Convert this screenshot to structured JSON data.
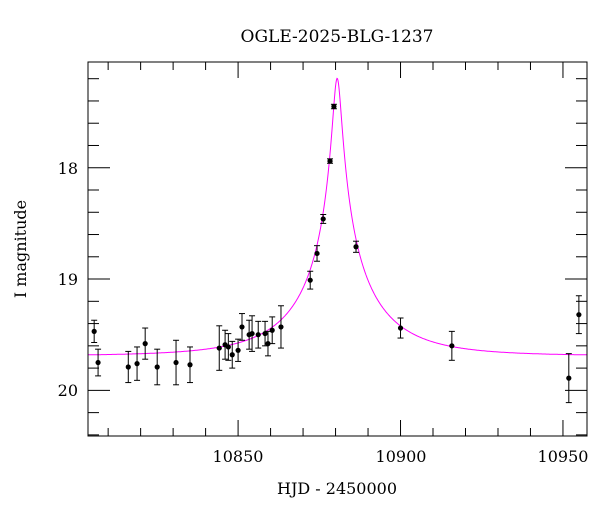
{
  "chart_data": {
    "type": "scatter",
    "title": "OGLE-2025-BLG-1237",
    "xlabel": "HJD - 2450000",
    "ylabel": "I magnitude",
    "xlim": [
      10803.8,
      10957.4
    ],
    "ylim": [
      20.41,
      17.05
    ],
    "y_inverted": true,
    "x_ticks": [
      10850,
      10900,
      10950
    ],
    "x_tick_labels": [
      "10850",
      "10900",
      "10950"
    ],
    "x_minor_step": 10,
    "y_ticks": [
      18,
      19,
      20
    ],
    "y_tick_labels": [
      "18",
      "19",
      "20"
    ],
    "y_minor_step": 0.2,
    "grid": false,
    "colors": {
      "points": "#000000",
      "model": "#ff00ff"
    },
    "series": [
      {
        "kind": "points-with-errorbars",
        "x": [
          10805.7,
          10806.9,
          10816.2,
          10818.9,
          10821.4,
          10825.1,
          10830.9,
          10835.2,
          10844.2,
          10846.0,
          10847.0,
          10848.2,
          10850.0,
          10851.2,
          10853.4,
          10854.3,
          10856.2,
          10858.3,
          10859.2,
          10860.5,
          10863.2,
          10872.2,
          10874.3,
          10876.2,
          10878.3,
          10879.5,
          10886.3,
          10900.0,
          10915.8,
          10951.8,
          10954.9
        ],
        "y": [
          19.47,
          19.75,
          19.79,
          19.76,
          19.58,
          19.79,
          19.75,
          19.77,
          19.62,
          19.59,
          19.61,
          19.68,
          19.64,
          19.43,
          19.5,
          19.49,
          19.5,
          19.49,
          19.58,
          19.46,
          19.43,
          19.01,
          18.77,
          18.46,
          17.94,
          17.45,
          18.71,
          19.44,
          19.6,
          19.89,
          19.32
        ],
        "yerr": [
          0.1,
          0.12,
          0.14,
          0.15,
          0.14,
          0.16,
          0.2,
          0.16,
          0.2,
          0.13,
          0.12,
          0.12,
          0.1,
          0.12,
          0.13,
          0.16,
          0.12,
          0.11,
          0.11,
          0.12,
          0.19,
          0.08,
          0.07,
          0.04,
          0.02,
          0.02,
          0.05,
          0.09,
          0.13,
          0.22,
          0.17
        ]
      },
      {
        "kind": "model-curve",
        "model": "point-lens",
        "t0": 10880.5,
        "u0": 0.05,
        "tE": 26,
        "baseline_mag": 19.69,
        "source_fraction": 0.47
      }
    ]
  }
}
